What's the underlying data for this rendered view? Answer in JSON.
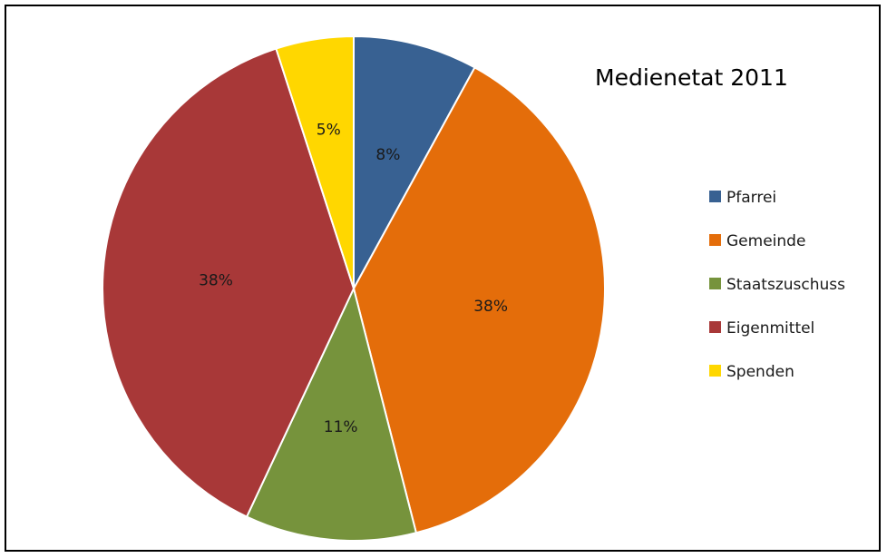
{
  "chart_data": {
    "type": "pie",
    "title": "Medienetat 2011",
    "legend_position": "right",
    "slices": [
      {
        "label": "Pfarrei",
        "value": 8,
        "display": "8%",
        "color": "#386192"
      },
      {
        "label": "Gemeinde",
        "value": 38,
        "display": "38%",
        "color": "#E46D0A"
      },
      {
        "label": "Staatszuschuss",
        "value": 11,
        "display": "11%",
        "color": "#76933C"
      },
      {
        "label": "Eigenmittel",
        "value": 38,
        "display": "38%",
        "color": "#A83838"
      },
      {
        "label": "Spenden",
        "value": 5,
        "display": "5%",
        "color": "#FFD700"
      }
    ]
  }
}
